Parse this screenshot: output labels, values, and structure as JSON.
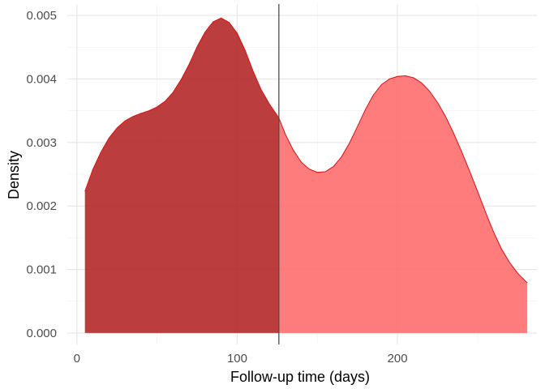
{
  "chart_data": {
    "type": "area",
    "xlabel": "Follow-up time (days)",
    "ylabel": "Density",
    "xlim": [
      -6,
      287
    ],
    "ylim": [
      -0.00018,
      0.00518
    ],
    "x_ticks": [
      0,
      100,
      200
    ],
    "y_ticks": [
      0.0,
      0.001,
      0.002,
      0.003,
      0.004,
      0.005
    ],
    "x_tick_labels": [
      "0",
      "100",
      "200"
    ],
    "y_tick_labels": [
      "0.000",
      "0.001",
      "0.002",
      "0.003",
      "0.004",
      "0.005"
    ],
    "grid": true,
    "vline": 126,
    "colors": {
      "left_fill": "#b22222",
      "right_fill": "#ff6a6a",
      "outline": "#dd1111",
      "vline": "#4d4d4d"
    },
    "density_curve": [
      [
        5,
        0.00223
      ],
      [
        10,
        0.00258
      ],
      [
        15,
        0.00285
      ],
      [
        20,
        0.00307
      ],
      [
        25,
        0.00323
      ],
      [
        30,
        0.00334
      ],
      [
        35,
        0.00341
      ],
      [
        40,
        0.00346
      ],
      [
        45,
        0.0035
      ],
      [
        50,
        0.00356
      ],
      [
        55,
        0.00365
      ],
      [
        60,
        0.00379
      ],
      [
        65,
        0.00399
      ],
      [
        70,
        0.00423
      ],
      [
        75,
        0.00451
      ],
      [
        80,
        0.00474
      ],
      [
        85,
        0.0049
      ],
      [
        90,
        0.00496
      ],
      [
        95,
        0.00489
      ],
      [
        100,
        0.00472
      ],
      [
        105,
        0.00445
      ],
      [
        110,
        0.00412
      ],
      [
        115,
        0.00383
      ],
      [
        120,
        0.00361
      ],
      [
        126,
        0.00339
      ],
      [
        130,
        0.00313
      ],
      [
        135,
        0.00288
      ],
      [
        140,
        0.00269
      ],
      [
        145,
        0.00258
      ],
      [
        150,
        0.00253
      ],
      [
        155,
        0.00254
      ],
      [
        160,
        0.00262
      ],
      [
        165,
        0.00277
      ],
      [
        170,
        0.00299
      ],
      [
        175,
        0.00325
      ],
      [
        180,
        0.00352
      ],
      [
        185,
        0.00375
      ],
      [
        190,
        0.00391
      ],
      [
        195,
        0.004
      ],
      [
        200,
        0.00404
      ],
      [
        205,
        0.00405
      ],
      [
        210,
        0.00402
      ],
      [
        215,
        0.00394
      ],
      [
        220,
        0.00381
      ],
      [
        225,
        0.00363
      ],
      [
        230,
        0.00341
      ],
      [
        235,
        0.00315
      ],
      [
        240,
        0.00286
      ],
      [
        245,
        0.00255
      ],
      [
        250,
        0.00223
      ],
      [
        255,
        0.0019
      ],
      [
        260,
        0.00159
      ],
      [
        265,
        0.00132
      ],
      [
        270,
        0.00111
      ],
      [
        275,
        0.00094
      ],
      [
        281,
        0.00079
      ]
    ]
  }
}
